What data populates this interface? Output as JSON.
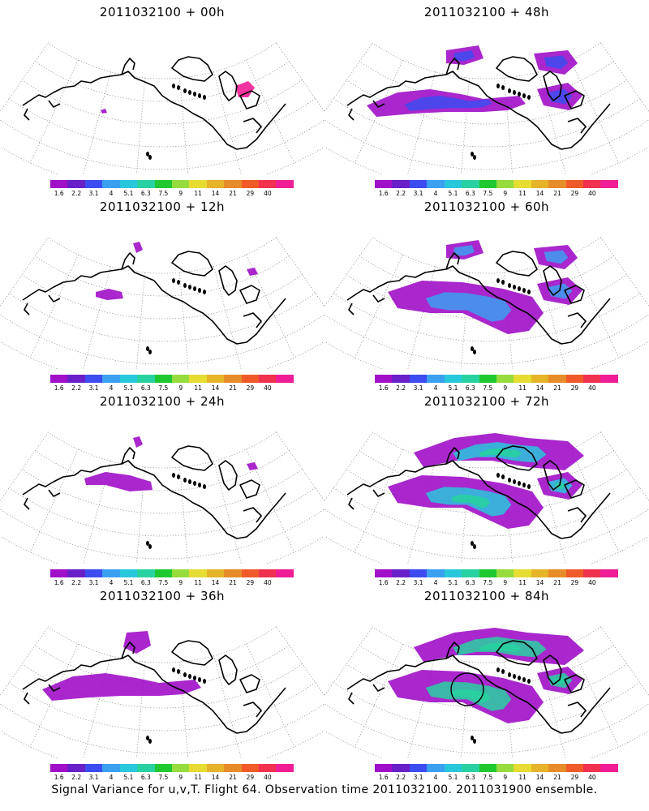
{
  "panels": [
    {
      "title": "2011032100 + 00h",
      "intensity": 0,
      "features": [
        "speck",
        "hudson-pink"
      ]
    },
    {
      "title": "2011032100 + 12h",
      "intensity": 1,
      "features": [
        "pacific-small",
        "north-small",
        "hudson-small"
      ]
    },
    {
      "title": "2011032100 + 24h",
      "intensity": 2,
      "features": [
        "pacific-band",
        "north-small",
        "hudson-small"
      ]
    },
    {
      "title": "2011032100 + 36h",
      "intensity": 3,
      "features": [
        "pacific-wide",
        "north-medium"
      ]
    },
    {
      "title": "2011032100 + 48h",
      "intensity": 4,
      "features": [
        "pacific-wide",
        "north-band",
        "hudson-blob"
      ]
    },
    {
      "title": "2011032100 + 60h",
      "intensity": 5,
      "features": [
        "pacific-large",
        "north-band",
        "hudson-blob"
      ]
    },
    {
      "title": "2011032100 + 72h",
      "intensity": 6,
      "features": [
        "pacific-large",
        "north-arc",
        "hudson-blob"
      ]
    },
    {
      "title": "2011032100 + 84h",
      "intensity": 7,
      "features": [
        "pacific-large",
        "north-arc",
        "hudson-blob",
        "circle-marker"
      ]
    }
  ],
  "colorbar": {
    "colors": [
      "#a010c8",
      "#6a20c8",
      "#3c4cf0",
      "#3ca0f0",
      "#28c8dc",
      "#28d2a0",
      "#20c830",
      "#96dc3c",
      "#e6dc32",
      "#e6b428",
      "#e68c28",
      "#f05a28",
      "#f03250",
      "#f01e96"
    ],
    "labels": [
      "1.6",
      "2.2",
      "3.1",
      "4",
      "5.1",
      "6.3",
      "7.5",
      "9",
      "11",
      "14",
      "21",
      "29",
      "40"
    ]
  },
  "caption": "Signal Variance for u,v,T. Flight 64. Observation time 2011032100. 2011031900 ensemble."
}
